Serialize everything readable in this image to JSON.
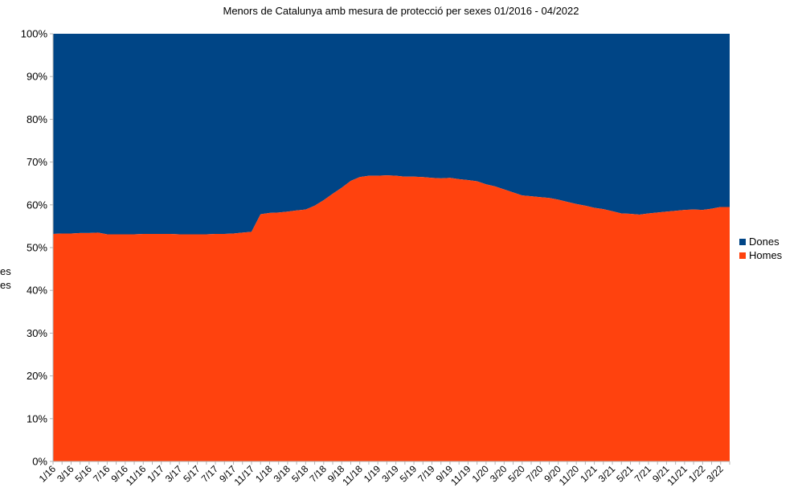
{
  "chart_data": {
    "type": "area",
    "stacked": "percent",
    "title": "Menors de Catalunya amb mesura de protecció per sexes 01/2016 - 04/2022",
    "ylabel_fragments": [
      "es",
      "es"
    ],
    "yticks": [
      "0%",
      "10%",
      "20%",
      "30%",
      "40%",
      "50%",
      "60%",
      "70%",
      "80%",
      "90%",
      "100%"
    ],
    "ylim": [
      0,
      100
    ],
    "xtick_labels": [
      "1/16",
      "3/16",
      "5/16",
      "7/16",
      "9/16",
      "11/16",
      "1/17",
      "3/17",
      "5/17",
      "7/17",
      "9/17",
      "11/17",
      "1/18",
      "3/18",
      "5/18",
      "7/18",
      "9/18",
      "11/18",
      "1/19",
      "3/19",
      "5/19",
      "7/19",
      "9/19",
      "11/19",
      "1/20",
      "3/20",
      "5/20",
      "7/20",
      "9/20",
      "11/20",
      "1/21",
      "3/21",
      "5/21",
      "7/21",
      "9/21",
      "11/21",
      "1/22",
      "3/22"
    ],
    "x": [
      "1/16",
      "2/16",
      "3/16",
      "4/16",
      "5/16",
      "6/16",
      "7/16",
      "8/16",
      "9/16",
      "10/16",
      "11/16",
      "12/16",
      "1/17",
      "2/17",
      "3/17",
      "4/17",
      "5/17",
      "6/17",
      "7/17",
      "8/17",
      "9/17",
      "10/17",
      "11/17",
      "12/17",
      "1/18",
      "2/18",
      "3/18",
      "4/18",
      "5/18",
      "6/18",
      "7/18",
      "8/18",
      "9/18",
      "10/18",
      "11/18",
      "12/18",
      "1/19",
      "2/19",
      "3/19",
      "4/19",
      "5/19",
      "6/19",
      "7/19",
      "8/19",
      "9/19",
      "10/19",
      "11/19",
      "12/19",
      "1/20",
      "2/20",
      "3/20",
      "4/20",
      "5/20",
      "6/20",
      "7/20",
      "8/20",
      "9/20",
      "10/20",
      "11/20",
      "12/20",
      "1/21",
      "2/21",
      "3/21",
      "4/21",
      "5/21",
      "6/21",
      "7/21",
      "8/21",
      "9/21",
      "10/21",
      "11/21",
      "12/21",
      "1/22",
      "2/22",
      "3/22",
      "4/22"
    ],
    "series": [
      {
        "name": "Homes",
        "color": "#ff420e",
        "values": [
          53.2,
          53.3,
          53.3,
          53.4,
          53.4,
          53.5,
          53.1,
          53.1,
          53.1,
          53.1,
          53.2,
          53.2,
          53.2,
          53.2,
          53.1,
          53.1,
          53.1,
          53.1,
          53.2,
          53.2,
          53.3,
          53.5,
          53.7,
          57.8,
          58.1,
          58.2,
          58.4,
          58.7,
          58.9,
          59.8,
          61.1,
          62.6,
          64.0,
          65.6,
          66.5,
          66.8,
          66.8,
          66.9,
          66.8,
          66.6,
          66.6,
          66.5,
          66.3,
          66.2,
          66.3,
          66.0,
          65.8,
          65.5,
          64.8,
          64.3,
          63.6,
          62.9,
          62.2,
          62.0,
          61.8,
          61.6,
          61.2,
          60.7,
          60.2,
          59.8,
          59.3,
          59.0,
          58.5,
          58.0,
          57.9,
          57.7,
          58.0,
          58.2,
          58.4,
          58.6,
          58.8,
          58.9,
          58.8,
          59.1,
          59.5,
          59.5
        ]
      },
      {
        "name": "Dones",
        "color": "#004586",
        "values": [
          46.8,
          46.7,
          46.7,
          46.6,
          46.6,
          46.5,
          46.9,
          46.9,
          46.9,
          46.9,
          46.8,
          46.8,
          46.8,
          46.8,
          46.9,
          46.9,
          46.9,
          46.9,
          46.8,
          46.8,
          46.7,
          46.5,
          46.3,
          42.2,
          41.9,
          41.8,
          41.6,
          41.3,
          41.1,
          40.2,
          38.9,
          37.4,
          36.0,
          34.4,
          33.5,
          33.2,
          33.2,
          33.1,
          33.2,
          33.4,
          33.4,
          33.5,
          33.7,
          33.8,
          33.7,
          34.0,
          34.2,
          34.5,
          35.2,
          35.7,
          36.4,
          37.1,
          37.8,
          38.0,
          38.2,
          38.4,
          38.8,
          39.3,
          39.8,
          40.2,
          40.7,
          41.0,
          41.5,
          42.0,
          42.1,
          42.3,
          42.0,
          41.8,
          41.6,
          41.4,
          41.2,
          41.1,
          41.2,
          40.9,
          40.5,
          40.5
        ]
      }
    ],
    "legend": {
      "position": "right",
      "order": [
        "Dones",
        "Homes"
      ]
    },
    "grid": false
  }
}
